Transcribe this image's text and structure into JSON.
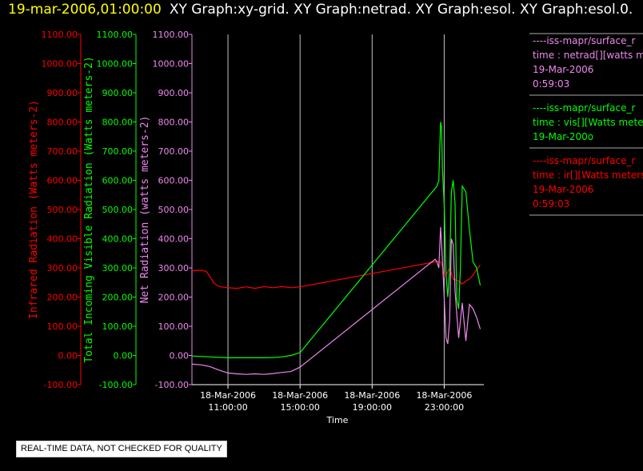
{
  "header": {
    "timestamp": "19-mar-2006,01:00:00",
    "titles": "XY Graph:xy-grid.  XY Graph:netrad.  XY Graph:esol.  XY Graph:esol.0."
  },
  "notice": "REAL-TIME DATA, NOT CHECKED FOR QUALITY",
  "colors": {
    "ir": "#ff0000",
    "vis": "#00ff00",
    "net": "#ee88ee",
    "grid": "#c0c0c0",
    "text": "#ffffff"
  },
  "legend": [
    {
      "color": "#ee88ee",
      "lines": [
        "----iss-mapr/surface_r",
        "time : netrad[][watts me",
        "19-Mar-2006",
        "0:59:03"
      ]
    },
    {
      "color": "#00ff00",
      "lines": [
        "----iss-mapr/surface_r",
        "time : vis[][Watts mete",
        "19-Mar-200o"
      ]
    },
    {
      "color": "#ff0000",
      "lines": [
        "----iss-mapr/surface_r",
        "time : ir[][Watts meters",
        "19-Mar-2006",
        "0:59:03"
      ]
    }
  ],
  "chart_data": {
    "type": "line",
    "xlabel": "Time",
    "x_ticks": [
      {
        "t": 11,
        "label1": "18-Mar-2006",
        "label2": "11:00:00"
      },
      {
        "t": 15,
        "label1": "18-Mar-2006",
        "label2": "15:00:00"
      },
      {
        "t": 19,
        "label1": "18-Mar-2006",
        "label2": "19:00:00"
      },
      {
        "t": 23,
        "label1": "18-Mar-2006",
        "label2": "23:00:00"
      }
    ],
    "xlim_hours_since_18mar_00": [
      9,
      25.2
    ],
    "ylim": [
      -100,
      1100
    ],
    "y_ticks": [
      "-100.00",
      "0.00",
      "100.00",
      "200.00",
      "300.00",
      "400.00",
      "500.00",
      "600.00",
      "700.00",
      "800.00",
      "900.00",
      "1000.00",
      "1100.00"
    ],
    "y_tick_values": [
      -100,
      0,
      100,
      200,
      300,
      400,
      500,
      600,
      700,
      800,
      900,
      1000,
      1100
    ],
    "axes": [
      {
        "label": "Infrared Radiation (Watts meters-2)",
        "color": "#ff0000"
      },
      {
        "label": "Total Incoming Visible Radiation (Watts meters-2)",
        "color": "#00ff00"
      },
      {
        "label": "Net Radiation (watts meters-2)",
        "color": "#ee88ee"
      }
    ],
    "grid": "vertical at x ticks",
    "series": [
      {
        "name": "ir",
        "color": "#ff0000",
        "x": [
          9.0,
          9.5,
          9.8,
          10.0,
          10.2,
          10.4,
          10.6,
          11.0,
          11.5,
          12.0,
          12.5,
          13.0,
          13.5,
          14.0,
          14.5,
          15.0,
          22.6,
          22.8,
          22.9,
          23.0,
          23.1,
          23.3,
          23.5,
          23.8,
          24.0,
          24.2,
          24.4,
          24.6,
          24.8,
          25.0
        ],
        "y": [
          290,
          292,
          288,
          270,
          250,
          240,
          235,
          232,
          230,
          235,
          230,
          236,
          232,
          236,
          232,
          235,
          322,
          320,
          305,
          270,
          275,
          300,
          262,
          255,
          245,
          255,
          262,
          275,
          295,
          310
        ]
      },
      {
        "name": "vis",
        "color": "#00ff00",
        "x": [
          9.0,
          10.0,
          11.0,
          12.0,
          13.0,
          13.5,
          14.0,
          14.5,
          15.0,
          22.6,
          22.7,
          22.8,
          22.85,
          22.9,
          23.0,
          23.1,
          23.2,
          23.3,
          23.4,
          23.5,
          23.6,
          23.7,
          23.8,
          23.9,
          24.0,
          24.2,
          24.4,
          24.6,
          24.8,
          25.0
        ],
        "y": [
          -2,
          -5,
          -8,
          -8,
          -8,
          -7,
          -5,
          0,
          10,
          580,
          600,
          800,
          780,
          640,
          520,
          280,
          200,
          290,
          560,
          600,
          520,
          190,
          160,
          300,
          580,
          560,
          430,
          320,
          300,
          240
        ]
      },
      {
        "name": "net",
        "color": "#ee88ee",
        "x": [
          9.0,
          9.5,
          10.0,
          10.5,
          11.0,
          11.5,
          12.0,
          12.5,
          13.0,
          13.5,
          14.0,
          14.5,
          15.0,
          22.5,
          22.6,
          22.7,
          22.8,
          22.9,
          23.0,
          23.1,
          23.2,
          23.3,
          23.4,
          23.5,
          23.6,
          23.7,
          23.8,
          24.0,
          24.2,
          24.4,
          24.6,
          24.8,
          25.0
        ],
        "y": [
          -30,
          -32,
          -38,
          -50,
          -60,
          -63,
          -65,
          -63,
          -65,
          -62,
          -58,
          -55,
          -40,
          330,
          320,
          300,
          440,
          330,
          200,
          60,
          40,
          120,
          400,
          380,
          220,
          140,
          60,
          180,
          50,
          175,
          160,
          130,
          90
        ]
      }
    ]
  }
}
